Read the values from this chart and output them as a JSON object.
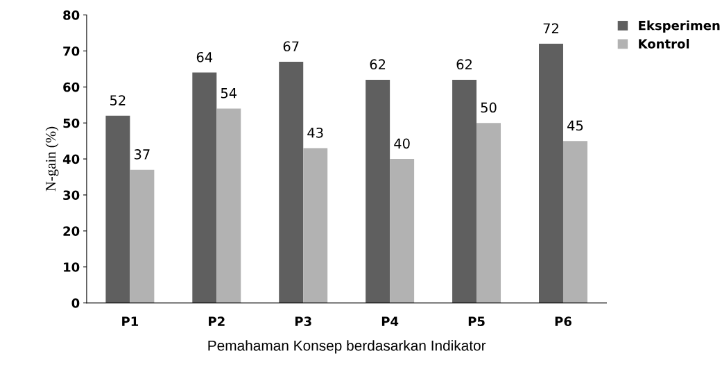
{
  "chart_data": {
    "type": "bar",
    "xlabel": "Pemahaman Konsep berdasarkan Indikator",
    "ylabel": "N-gain (%)",
    "categories": [
      "P1",
      "P2",
      "P3",
      "P4",
      "P5",
      "P6"
    ],
    "series": [
      {
        "name": "Eksperimen",
        "color": "#5f5f5f",
        "values": [
          52,
          64,
          67,
          62,
          62,
          72
        ]
      },
      {
        "name": "Kontrol",
        "color": "#b2b2b2",
        "values": [
          37,
          54,
          43,
          40,
          50,
          45
        ]
      }
    ],
    "ylim": [
      0,
      80
    ],
    "yticks": [
      0,
      10,
      20,
      30,
      40,
      50,
      60,
      70,
      80
    ],
    "data_labels": true,
    "grid": false,
    "legend": "top right"
  }
}
